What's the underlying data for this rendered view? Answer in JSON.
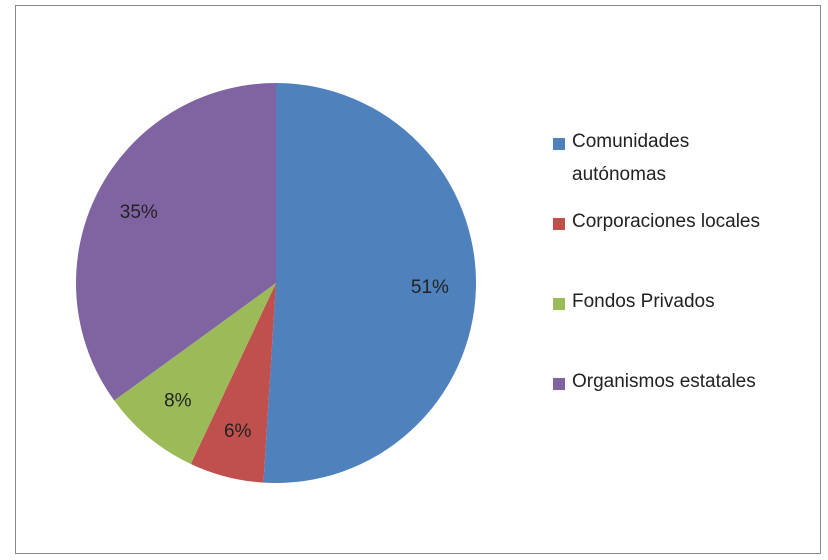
{
  "chart_data": {
    "type": "pie",
    "categories": [
      "Comunidades autónomas",
      "Corporaciones locales",
      "Fondos Privados",
      "Organismos estatales"
    ],
    "values": [
      51,
      6,
      8,
      35
    ],
    "value_labels": [
      "51%",
      "6%",
      "8%",
      "35%"
    ],
    "colors": [
      "#4f81bd",
      "#c0504d",
      "#9bbb59",
      "#8064a2"
    ],
    "legend": "right"
  }
}
